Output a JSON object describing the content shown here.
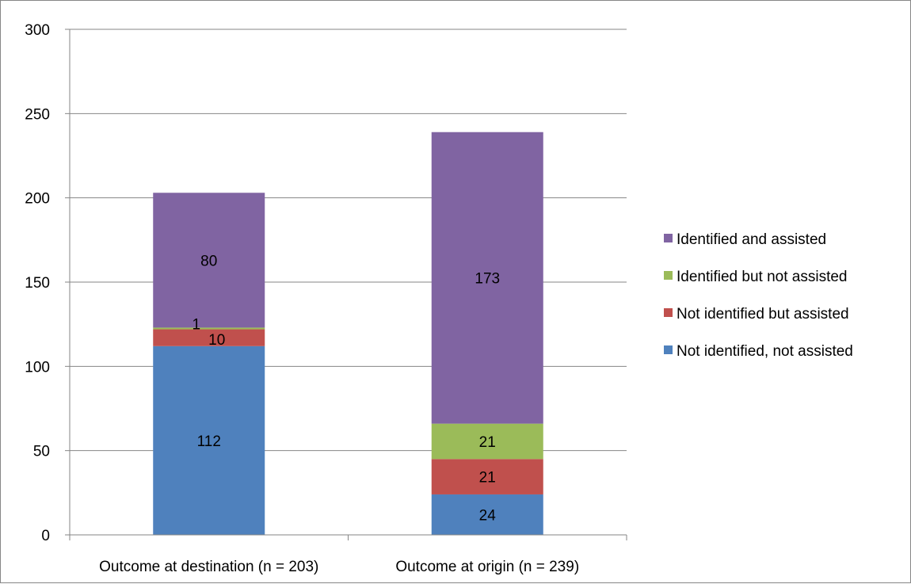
{
  "chart_data": {
    "type": "bar",
    "stacked": true,
    "categories": [
      "Outcome at destination (n = 203)",
      "Outcome at origin (n = 239)"
    ],
    "series": [
      {
        "name": "Not identified, not assisted",
        "values": [
          112,
          24
        ],
        "color": "#4F81BD",
        "labels": [
          "112",
          "24"
        ]
      },
      {
        "name": "Not identified but assisted",
        "values": [
          10,
          21
        ],
        "color": "#C0504D",
        "labels": [
          "10",
          "21"
        ]
      },
      {
        "name": "Identified but not assisted",
        "values": [
          1,
          21
        ],
        "color": "#9BBB59",
        "labels": [
          "1",
          "21"
        ]
      },
      {
        "name": "Identified and assisted",
        "values": [
          80,
          173
        ],
        "color": "#8064A2",
        "labels": [
          "80",
          "173"
        ]
      }
    ],
    "ylim": [
      0,
      300
    ],
    "yticks": [
      0,
      50,
      100,
      150,
      200,
      250,
      300
    ],
    "grid": true,
    "legend_position": "right",
    "legend_order": [
      3,
      2,
      1,
      0
    ]
  }
}
